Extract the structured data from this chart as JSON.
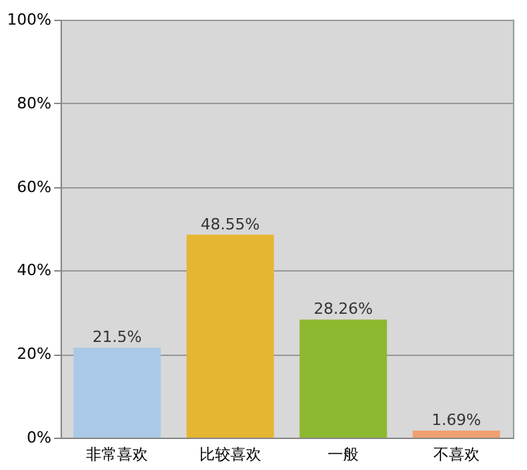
{
  "chart_data": {
    "type": "bar",
    "categories": [
      "非常喜欢",
      "比较喜欢",
      "一般",
      "不喜欢"
    ],
    "values": [
      21.5,
      48.55,
      28.26,
      1.69
    ],
    "colors": [
      "#a9c9e6",
      "#e6b532",
      "#8cb92f",
      "#f0a070"
    ],
    "value_labels": [
      "21.5%",
      "48.55%",
      "28.26%",
      "1.69%"
    ],
    "ylim": [
      0,
      100
    ],
    "yticks": [
      {
        "value": 0,
        "label": "0%"
      },
      {
        "value": 20,
        "label": "20%"
      },
      {
        "value": 40,
        "label": "40%"
      },
      {
        "value": 60,
        "label": "60%"
      },
      {
        "value": 80,
        "label": "80%"
      },
      {
        "value": 100,
        "label": "100%"
      }
    ],
    "grid": "y"
  }
}
